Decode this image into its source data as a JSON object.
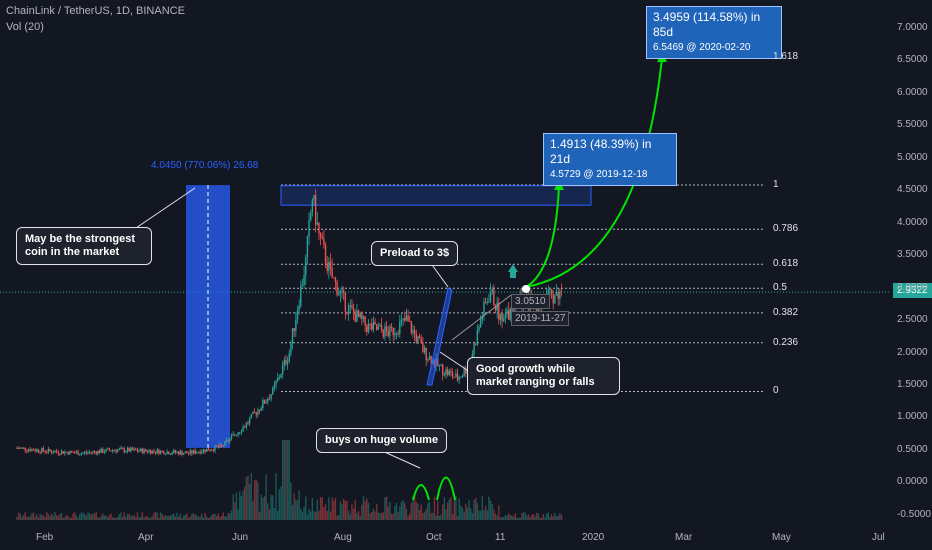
{
  "header": {
    "symbol": "ChainLink / TetherUS, 1D, BINANCE",
    "volume": "Vol (20)"
  },
  "colors": {
    "background": "#131722",
    "up": "#26a69a",
    "down": "#ef5350",
    "arrow": "#00e600",
    "fib": "#b2b5be",
    "box": "#2962ff"
  },
  "chart_data": {
    "type": "candlestick",
    "xlabels": [
      "Feb",
      "Apr",
      "Jun",
      "Aug",
      "Oct",
      "11",
      "2020",
      "Mar",
      "May",
      "Jul"
    ],
    "ylim": [
      -0.5,
      7.0
    ],
    "ytick_labels": [
      "7.0000",
      "6.5000",
      "6.0000",
      "5.5000",
      "5.0000",
      "4.5000",
      "4.0000",
      "3.5000",
      "3.0000",
      "2.5000",
      "2.0000",
      "1.5000",
      "1.0000",
      "0.5000",
      "0.0000",
      "-0.5000"
    ],
    "last_price": "2.9322",
    "fib_levels": [
      {
        "label": "1.618",
        "value": 6.55
      },
      {
        "label": "1",
        "value": 4.58
      },
      {
        "label": "0.786",
        "value": 3.9
      },
      {
        "label": "0.618",
        "value": 3.36
      },
      {
        "label": "0.5",
        "value": 2.99
      },
      {
        "label": "0.382",
        "value": 2.61
      },
      {
        "label": "0.236",
        "value": 2.15
      },
      {
        "label": "0",
        "value": 1.4
      }
    ],
    "price_path": [
      {
        "date": "2019-01-01",
        "price": 0.53
      },
      {
        "date": "2019-01-20",
        "price": 0.48
      },
      {
        "date": "2019-02-10",
        "price": 0.45
      },
      {
        "date": "2019-03-01",
        "price": 0.5
      },
      {
        "date": "2019-03-25",
        "price": 0.48
      },
      {
        "date": "2019-04-15",
        "price": 0.45
      },
      {
        "date": "2019-05-05",
        "price": 0.55
      },
      {
        "date": "2019-05-20",
        "price": 0.9
      },
      {
        "date": "2019-05-28",
        "price": 1.15
      },
      {
        "date": "2019-06-05",
        "price": 1.4
      },
      {
        "date": "2019-06-15",
        "price": 2.0
      },
      {
        "date": "2019-06-25",
        "price": 3.4
      },
      {
        "date": "2019-06-29",
        "price": 4.4
      },
      {
        "date": "2019-07-03",
        "price": 3.8
      },
      {
        "date": "2019-07-10",
        "price": 3.2
      },
      {
        "date": "2019-07-20",
        "price": 2.7
      },
      {
        "date": "2019-08-01",
        "price": 2.4
      },
      {
        "date": "2019-08-15",
        "price": 2.3
      },
      {
        "date": "2019-08-25",
        "price": 2.5
      },
      {
        "date": "2019-09-05",
        "price": 2.0
      },
      {
        "date": "2019-09-15",
        "price": 1.75
      },
      {
        "date": "2019-09-25",
        "price": 1.6
      },
      {
        "date": "2019-10-02",
        "price": 1.8
      },
      {
        "date": "2019-10-10",
        "price": 2.6
      },
      {
        "date": "2019-10-15",
        "price": 2.95
      },
      {
        "date": "2019-10-22",
        "price": 2.45
      },
      {
        "date": "2019-10-30",
        "price": 2.8
      },
      {
        "date": "2019-11-10",
        "price": 2.75
      },
      {
        "date": "2019-11-27",
        "price": 2.93
      }
    ],
    "volume_spikes": [
      "buys on huge volume"
    ]
  },
  "annotations": {
    "strongest": "May be the strongest coin in the market",
    "measure_label": "4.0450 (770.06%) 26.68",
    "preload": "Preload to 3$",
    "growth": "Good growth while market ranging or falls",
    "volume_note": "buys on huge volume",
    "target1": {
      "main": "1.4913 (48.39%) in 21d",
      "sub": "4.5729 @ 2019-12-18"
    },
    "target2": {
      "main": "3.4959 (114.58%) in 85d",
      "sub": "6.5469 @ 2020-02-20"
    },
    "current": {
      "price": "3.0510",
      "date": "2019-11-27"
    }
  }
}
